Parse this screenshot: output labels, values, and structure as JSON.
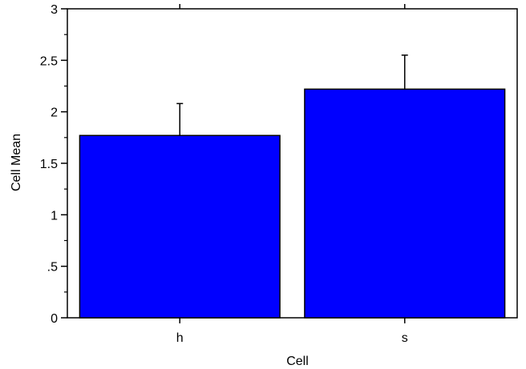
{
  "chart_data": {
    "type": "bar",
    "title": "",
    "xlabel": "Cell",
    "ylabel": "Cell Mean",
    "categories": [
      "h",
      "s"
    ],
    "values": [
      1.77,
      2.22
    ],
    "error_upper": [
      2.08,
      2.55
    ],
    "ylim": [
      0,
      3
    ],
    "yticks": [
      {
        "value": 0,
        "label": "0"
      },
      {
        "value": 0.5,
        "label": ".5"
      },
      {
        "value": 1,
        "label": "1"
      },
      {
        "value": 1.5,
        "label": "1.5"
      },
      {
        "value": 2,
        "label": "2"
      },
      {
        "value": 2.5,
        "label": "2.5"
      },
      {
        "value": 3,
        "label": "3"
      }
    ],
    "y_minor_step": 0.25,
    "grid": false,
    "legend": "none",
    "bar_color": "#0000ff",
    "edge_color": "#000000"
  }
}
